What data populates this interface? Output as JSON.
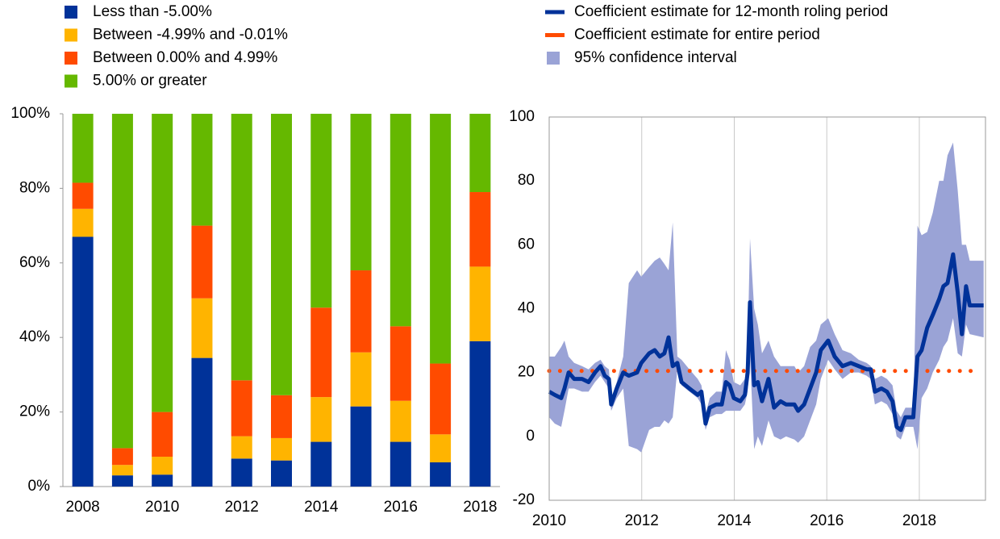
{
  "chart_data": [
    {
      "type": "bar",
      "stacked": true,
      "categories": [
        "2008",
        null,
        "2010",
        null,
        "2012",
        null,
        "2014",
        null,
        "2016",
        null,
        "2018"
      ],
      "series": [
        {
          "name": "Less than -5.00%",
          "color": "#003299",
          "values": [
            67,
            3,
            3.2,
            34.5,
            7.5,
            7,
            12,
            21.5,
            12,
            6.5,
            39
          ]
        },
        {
          "name": "Between -4.99% and -0.01%",
          "color": "#ffb400",
          "values": [
            7.5,
            2.8,
            4.8,
            16,
            6,
            6,
            12,
            14.5,
            11,
            7.5,
            20
          ]
        },
        {
          "name": "Between 0.00% and 4.99%",
          "color": "#ff4b00",
          "values": [
            7,
            4.5,
            12,
            19.5,
            15,
            11.5,
            24,
            22,
            20,
            19,
            20
          ]
        },
        {
          "name": "5.00% or greater",
          "color": "#65b800",
          "values": [
            18.5,
            89.7,
            80,
            30,
            71.5,
            75.5,
            52,
            42,
            57,
            67,
            21
          ]
        }
      ],
      "ylim": [
        0,
        100
      ],
      "yticks": [
        {
          "value": 0,
          "label": "0%"
        },
        {
          "value": 20,
          "label": "20%"
        },
        {
          "value": 40,
          "label": "40%"
        },
        {
          "value": 60,
          "label": "60%"
        },
        {
          "value": 80,
          "label": "80%"
        },
        {
          "value": 100,
          "label": "100%"
        }
      ]
    },
    {
      "type": "line",
      "x": [
        2010.0,
        2010.12,
        2010.26,
        2010.33,
        2010.42,
        2010.54,
        2010.71,
        2010.85,
        2010.99,
        2011.11,
        2011.2,
        2011.29,
        2011.34,
        2011.46,
        2011.6,
        2011.72,
        2011.9,
        2011.99,
        2012.16,
        2012.28,
        2012.39,
        2012.49,
        2012.58,
        2012.67,
        2012.77,
        2012.86,
        2013.03,
        2013.21,
        2013.29,
        2013.38,
        2013.47,
        2013.61,
        2013.73,
        2013.82,
        2013.9,
        2013.99,
        2014.13,
        2014.23,
        2014.29,
        2014.34,
        2014.43,
        2014.51,
        2014.6,
        2014.74,
        2014.86,
        2015.0,
        2015.12,
        2015.3,
        2015.38,
        2015.51,
        2015.64,
        2015.77,
        2015.87,
        2016.03,
        2016.17,
        2016.34,
        2016.52,
        2016.69,
        2016.86,
        2016.95,
        2017.04,
        2017.18,
        2017.3,
        2017.42,
        2017.51,
        2017.6,
        2017.7,
        2017.87,
        2017.96,
        2018.05,
        2018.17,
        2018.29,
        2018.43,
        2018.52,
        2018.61,
        2018.73,
        2018.83,
        2018.92,
        2019.01,
        2019.09,
        2019.39
      ],
      "series": [
        {
          "name": "Coefficient estimate for 12-month roling period",
          "color": "#003299",
          "style": "solid",
          "values": [
            14,
            13,
            12,
            15,
            20,
            18,
            18,
            17,
            20,
            22,
            19,
            18,
            10,
            15,
            20,
            19,
            20,
            23,
            26,
            27,
            25,
            26,
            31,
            22,
            23,
            17,
            15,
            13,
            14,
            4,
            9,
            10,
            10,
            17,
            16,
            12,
            11,
            13,
            20,
            42,
            16,
            17,
            11,
            18,
            9,
            11,
            10,
            10,
            8,
            10,
            15,
            20,
            27,
            30,
            25,
            22,
            23,
            22,
            21,
            21,
            14,
            15,
            14,
            11,
            3,
            2,
            6,
            6,
            25,
            27,
            34,
            38,
            43,
            47,
            48,
            57,
            45,
            32,
            47,
            41,
            41
          ]
        },
        {
          "name": "Coefficient estimate for entire period",
          "color": "#ff4b00",
          "style": "dotted",
          "x": [
            2010,
            2019.13
          ],
          "values": [
            20.5,
            20.5
          ]
        },
        {
          "name": "95% confidence interval",
          "color": "#9aa3d6",
          "style": "band",
          "lower": [
            6,
            4,
            3,
            8,
            15,
            15,
            14,
            14,
            17,
            19,
            17,
            15,
            8,
            12,
            15,
            -3,
            -4,
            -5,
            2,
            3,
            3,
            5,
            4,
            6,
            21,
            16,
            14,
            12,
            10,
            2,
            6,
            7,
            7,
            8,
            8,
            8,
            8,
            10,
            14,
            25,
            -4,
            0,
            -3,
            5,
            0,
            -1,
            0,
            -1,
            -2,
            0,
            5,
            10,
            18,
            24,
            21,
            18,
            20,
            20,
            19,
            18,
            10,
            11,
            10,
            7,
            0,
            -1,
            3,
            3,
            -4,
            12,
            15,
            20,
            24,
            28,
            30,
            37,
            26,
            25,
            35,
            32,
            31
          ],
          "upper": [
            25,
            25,
            28,
            30,
            25,
            23,
            22,
            21,
            23,
            24,
            22,
            21,
            12,
            17,
            25,
            48,
            52,
            50,
            53,
            55,
            56,
            54,
            52,
            67,
            25,
            24,
            21,
            18,
            16,
            7,
            12,
            14,
            14,
            27,
            24,
            17,
            16,
            18,
            28,
            62,
            40,
            35,
            26,
            30,
            25,
            22,
            22,
            22,
            20,
            22,
            28,
            30,
            35,
            37,
            32,
            27,
            26,
            24,
            23,
            22,
            18,
            19,
            18,
            16,
            8,
            6,
            9,
            9,
            66,
            63,
            64,
            70,
            80,
            80,
            88,
            92,
            77,
            60,
            60,
            55,
            55
          ]
        }
      ],
      "xlim": [
        2010,
        2019.43
      ],
      "xticks": [
        2010,
        2012,
        2014,
        2016,
        2018
      ],
      "ylim": [
        -20,
        100
      ],
      "yticks": [
        -20,
        0,
        20,
        40,
        60,
        80,
        100
      ],
      "grid": "x"
    }
  ]
}
